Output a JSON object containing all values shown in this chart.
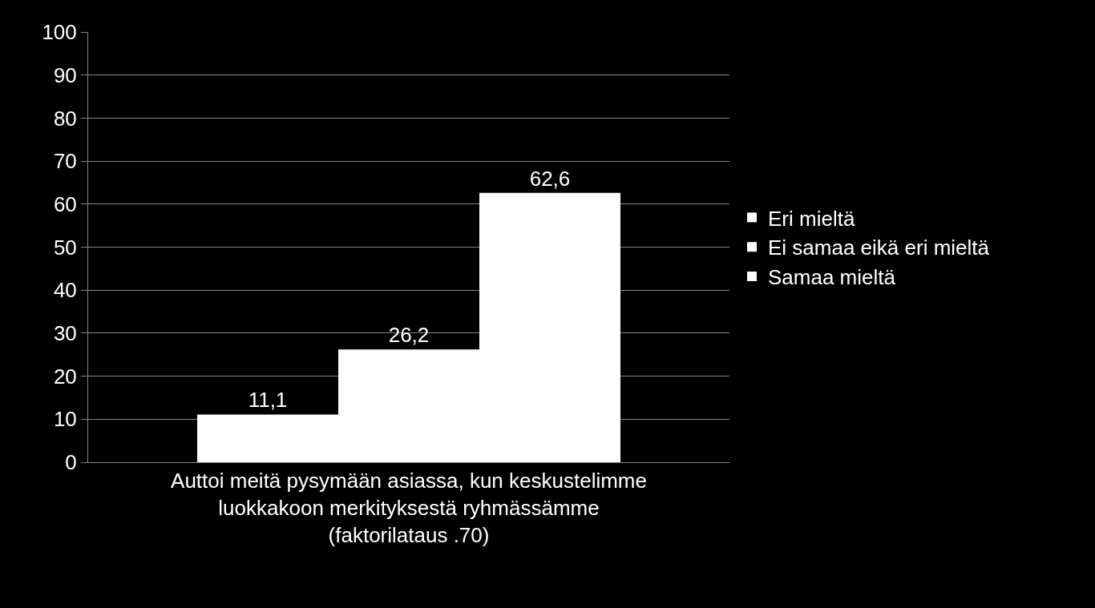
{
  "chart_data": {
    "type": "bar",
    "categories": [
      "Auttoi meitä pysymään asiassa, kun keskustelimme\nluokkakoon merkityksestä ryhmässämme\n(faktorilataus .70)"
    ],
    "series": [
      {
        "name": "Eri mieltä",
        "color": "#ffffff",
        "values": [
          11.1
        ],
        "value_labels": [
          "11,1"
        ]
      },
      {
        "name": "Ei samaa eikä eri mieltä",
        "color": "#ffffff",
        "values": [
          26.2
        ],
        "value_labels": [
          "26,2"
        ]
      },
      {
        "name": "Samaa mieltä",
        "color": "#ffffff",
        "values": [
          62.6
        ],
        "value_labels": [
          "62,6"
        ]
      }
    ],
    "ylim": [
      0,
      100
    ],
    "yticks": [
      0,
      10,
      20,
      30,
      40,
      50,
      60,
      70,
      80,
      90,
      100
    ],
    "grid": "y",
    "legend": "right"
  }
}
